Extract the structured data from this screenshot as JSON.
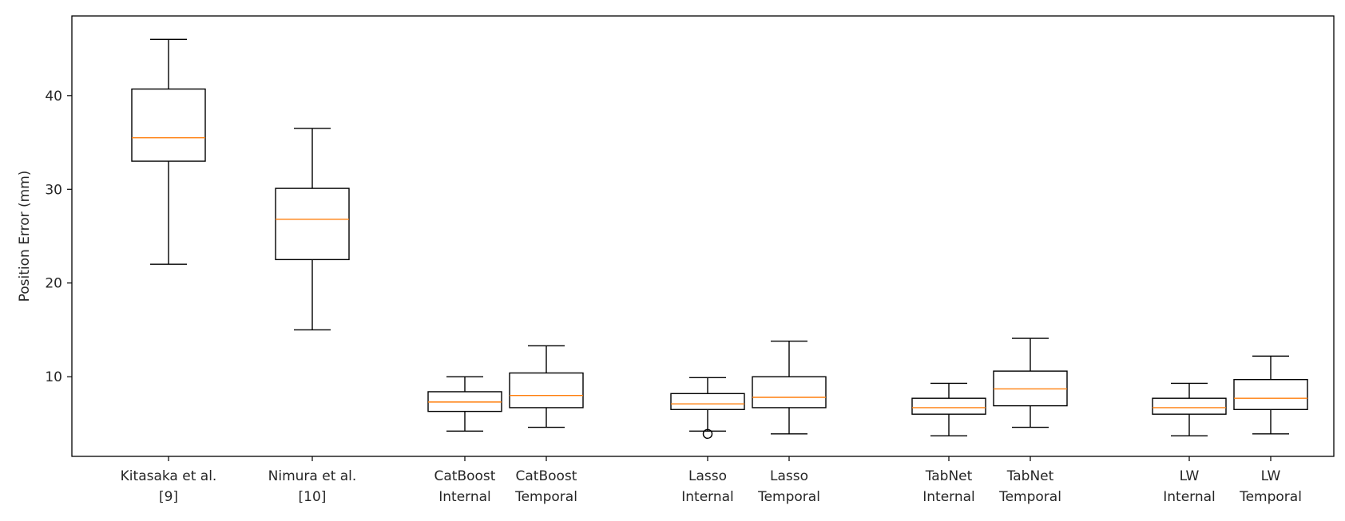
{
  "chart_data": {
    "type": "box",
    "title": "",
    "xlabel": "",
    "ylabel": "Position Error (mm)",
    "ylim": [
      1.5,
      48.5
    ],
    "yticks": [
      10,
      20,
      30,
      40
    ],
    "grid": false,
    "median_color": "#ff7f0e",
    "box_color": "#000000",
    "boxes": [
      {
        "label": [
          "Kitasaka et al.",
          "[9]"
        ],
        "whislo": 22.0,
        "q1": 33.0,
        "med": 35.5,
        "q3": 40.7,
        "whishi": 46.0,
        "fliers": []
      },
      {
        "label": [
          "Nimura et al.",
          "[10]"
        ],
        "whislo": 15.0,
        "q1": 22.5,
        "med": 26.8,
        "q3": 30.1,
        "whishi": 36.5,
        "fliers": []
      },
      {
        "label": [
          "CatBoost",
          "Internal"
        ],
        "whislo": 4.2,
        "q1": 6.3,
        "med": 7.3,
        "q3": 8.4,
        "whishi": 10.0,
        "fliers": []
      },
      {
        "label": [
          "CatBoost",
          "Temporal"
        ],
        "whislo": 4.6,
        "q1": 6.7,
        "med": 8.0,
        "q3": 10.4,
        "whishi": 13.3,
        "fliers": []
      },
      {
        "label": [
          "Lasso",
          "Internal"
        ],
        "whislo": 4.2,
        "q1": 6.5,
        "med": 7.1,
        "q3": 8.2,
        "whishi": 9.9,
        "fliers": [
          3.9
        ]
      },
      {
        "label": [
          "Lasso",
          "Temporal"
        ],
        "whislo": 3.9,
        "q1": 6.7,
        "med": 7.8,
        "q3": 10.0,
        "whishi": 13.8,
        "fliers": []
      },
      {
        "label": [
          "TabNet",
          "Internal"
        ],
        "whislo": 3.7,
        "q1": 6.0,
        "med": 6.7,
        "q3": 7.7,
        "whishi": 9.3,
        "fliers": []
      },
      {
        "label": [
          "TabNet",
          "Temporal"
        ],
        "whislo": 4.6,
        "q1": 6.9,
        "med": 8.7,
        "q3": 10.6,
        "whishi": 14.1,
        "fliers": []
      },
      {
        "label": [
          "LW",
          "Internal"
        ],
        "whislo": 3.7,
        "q1": 6.0,
        "med": 6.7,
        "q3": 7.7,
        "whishi": 9.3,
        "fliers": []
      },
      {
        "label": [
          "LW",
          "Temporal"
        ],
        "whislo": 3.9,
        "q1": 6.5,
        "med": 7.7,
        "q3": 9.7,
        "whishi": 12.2,
        "fliers": []
      }
    ]
  }
}
